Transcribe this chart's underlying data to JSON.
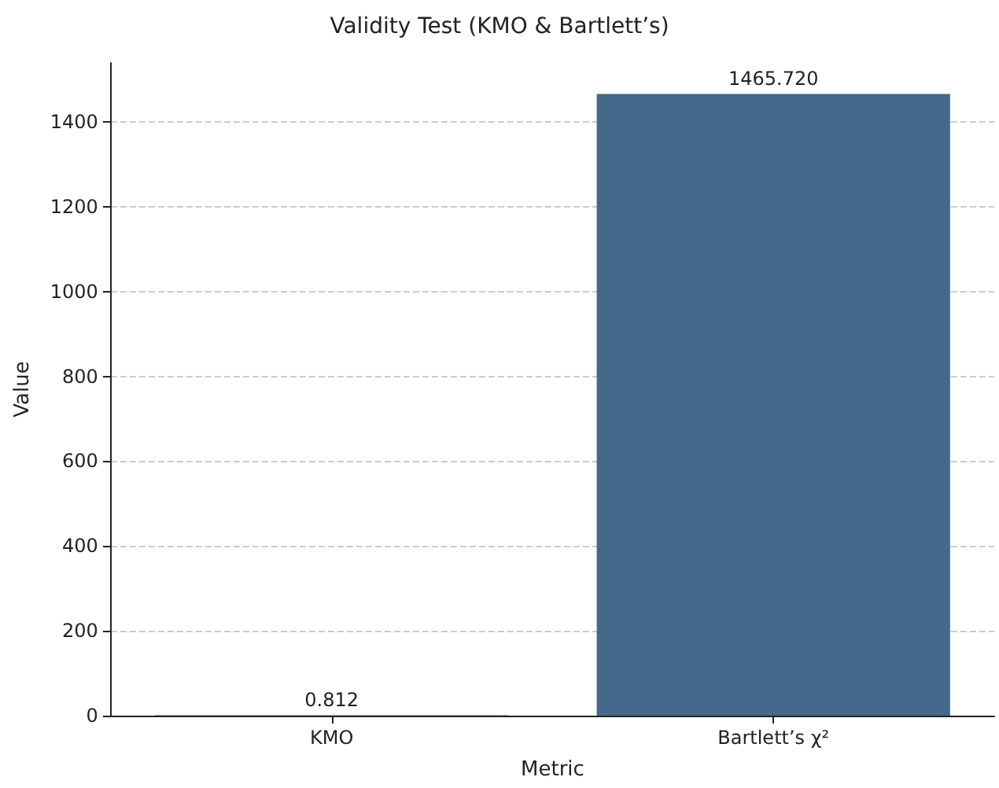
{
  "chart_data": {
    "type": "bar",
    "title": "Validity Test (KMO & Bartlett’s)",
    "xlabel": "Metric",
    "ylabel": "Value",
    "categories": [
      "KMO",
      "Bartlett’s χ²"
    ],
    "values": [
      0.812,
      1465.72
    ],
    "value_labels": [
      "0.812",
      "1465.720"
    ],
    "color": "#44698a",
    "ylim": [
      0,
      1539
    ],
    "yticks": [
      0,
      200,
      400,
      600,
      800,
      1000,
      1200,
      1400
    ],
    "grid": "y"
  }
}
